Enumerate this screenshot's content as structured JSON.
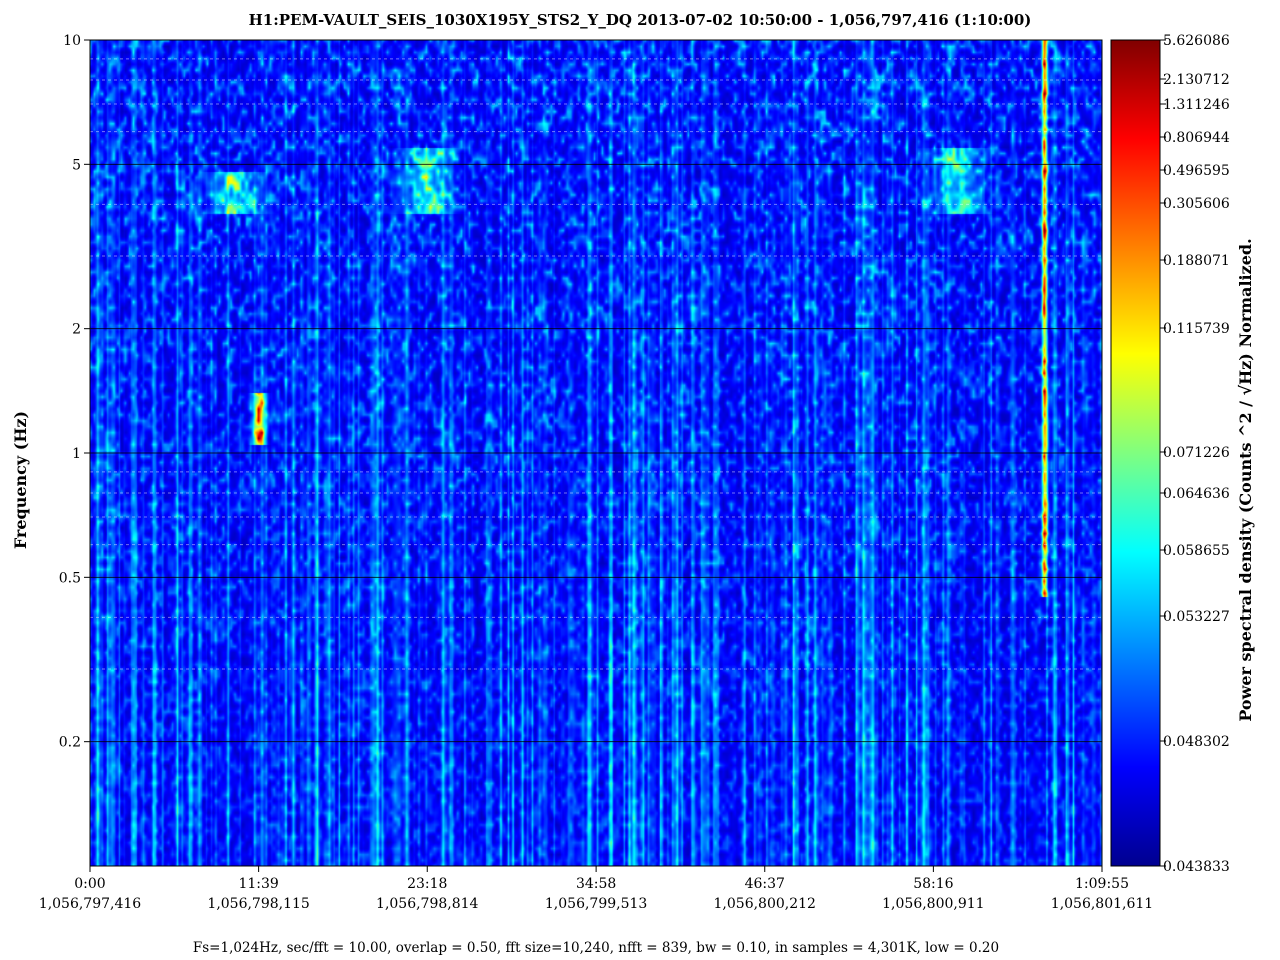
{
  "chart_data": {
    "type": "heatmap",
    "title": "H1:PEM-VAULT_SEIS_1030X195Y_STS2_Y_DQ 2013-07-02 10:50:00 - 1,056,797,416 (1:10:00)",
    "ylabel": "Frequency (Hz)",
    "colorbar_label": "Power spectral density (Counts ^2 / √Hz) Normalized.",
    "footer": "Fs=1,024Hz, sec/fft = 10.00, overlap = 0.50, fft size=10,240, nfft = 839, bw = 0.10, in samples = 4,301K, low = 0.20",
    "y_scale": "log",
    "ylim": [
      0.1,
      10
    ],
    "y_ticks": [
      {
        "value": 10,
        "label": "10"
      },
      {
        "value": 5,
        "label": "5"
      },
      {
        "value": 2,
        "label": "2"
      },
      {
        "value": 1,
        "label": "1"
      },
      {
        "value": 0.5,
        "label": "0.5"
      },
      {
        "value": 0.2,
        "label": "0.2"
      }
    ],
    "xlim_seconds": [
      0,
      4195
    ],
    "x_ticks": [
      {
        "seconds": 0,
        "time": "0:00",
        "gps": "1,056,797,416"
      },
      {
        "seconds": 699,
        "time": "11:39",
        "gps": "1,056,798,115"
      },
      {
        "seconds": 1398,
        "time": "23:18",
        "gps": "1,056,798,814"
      },
      {
        "seconds": 2098,
        "time": "34:58",
        "gps": "1,056,799,513"
      },
      {
        "seconds": 2797,
        "time": "46:37",
        "gps": "1,056,800,212"
      },
      {
        "seconds": 3496,
        "time": "58:16",
        "gps": "1,056,800,911"
      },
      {
        "seconds": 4195,
        "time": "1:09:55",
        "gps": "1,056,801,611"
      }
    ],
    "colorbar_ticks": [
      "5.626086",
      "2.130712",
      "1.311246",
      "0.806944",
      "0.496595",
      "0.305606",
      "0.188071",
      "0.115739",
      "0.071226",
      "0.064636",
      "0.058655",
      "0.053227",
      "0.048302",
      "0.043833"
    ],
    "colormap": "jet",
    "colormap_stops": [
      "#00008f",
      "#0000ff",
      "#00ffff",
      "#ffff00",
      "#ff0000",
      "#800000"
    ],
    "grid": true,
    "features": [
      {
        "name": "narrow transient",
        "time_s": 700,
        "freq_hz": [
          1.05,
          1.4
        ],
        "level": "high"
      },
      {
        "name": "persistent vertical line",
        "time_s": 3955,
        "freq_hz": [
          0.45,
          10
        ],
        "level": "high"
      },
      {
        "name": "broadband patch",
        "time_s": 1400,
        "freq_hz": [
          3.8,
          5.5
        ],
        "level": "medium"
      },
      {
        "name": "broadband patch",
        "time_s": 3600,
        "freq_hz": [
          3.8,
          5.5
        ],
        "level": "medium"
      },
      {
        "name": "broadband patch",
        "time_s": 600,
        "freq_hz": [
          3.8,
          4.8
        ],
        "level": "medium"
      }
    ]
  }
}
